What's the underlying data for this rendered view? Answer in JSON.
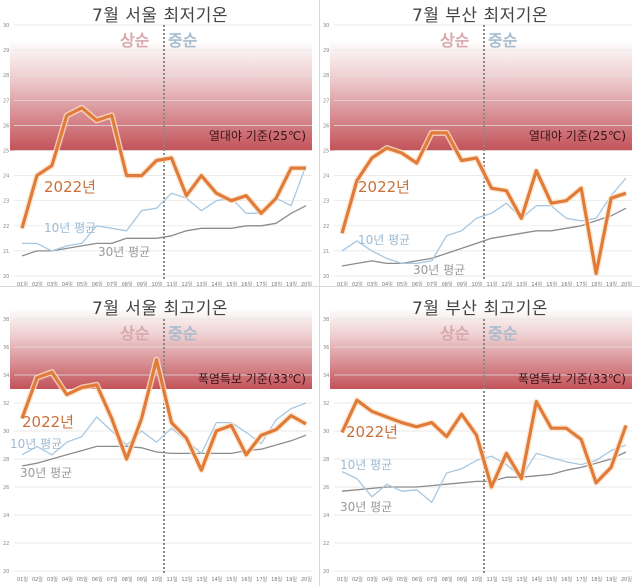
{
  "panels": [
    {
      "title": "7월 서울 최저기온",
      "period_early": "상순",
      "period_mid": "중순",
      "threshold_label": "열대야 기준(25℃)",
      "label_2022": "2022년",
      "label_10yr": "10년 평균",
      "label_30yr": "30년 평균"
    },
    {
      "title": "7월 부산 최저기온",
      "period_early": "상순",
      "period_mid": "중순",
      "threshold_label": "열대야 기준(25℃)",
      "label_2022": "2022년",
      "label_10yr": "10년 평균",
      "label_30yr": "30년 평균"
    },
    {
      "title": "7월 서울 최고기온",
      "period_early": "상순",
      "period_mid": "중순",
      "threshold_label": "폭염특보 기준(33℃)",
      "label_2022": "2022년",
      "label_10yr": "10년 평균",
      "label_30yr": "30년 평균"
    },
    {
      "title": "7월 부산 최고기온",
      "period_early": "상순",
      "period_mid": "중순",
      "threshold_label": "폭염특보 기준(33℃)",
      "label_2022": "2022년",
      "label_10yr": "10년 평균",
      "label_30yr": "30년 평균"
    }
  ],
  "colors": {
    "line_2022": "#e07b39",
    "line_10yr": "#a9c8e0",
    "line_30yr": "#8c8c8c",
    "band": "#b8343c",
    "divider": "#888888"
  },
  "chart_data": [
    {
      "type": "line",
      "title": "7월 서울 최저기온",
      "categories": [
        "01일",
        "02일",
        "03일",
        "04일",
        "05일",
        "06일",
        "07일",
        "08일",
        "09일",
        "10일",
        "11일",
        "12일",
        "13일",
        "14일",
        "15일",
        "16일",
        "17일",
        "18일",
        "19일",
        "20일"
      ],
      "ylim": [
        20,
        30
      ],
      "yticks": [
        20,
        21,
        22,
        23,
        24,
        25,
        26,
        27,
        28,
        29,
        30
      ],
      "threshold": 25,
      "threshold_label": "열대야 기준(25℃)",
      "divider_after": "10일",
      "series": [
        {
          "name": "2022년",
          "values": [
            21.9,
            24.0,
            24.4,
            26.4,
            26.7,
            26.2,
            26.4,
            24.0,
            24.0,
            24.6,
            24.7,
            23.2,
            24.0,
            23.3,
            23.0,
            23.2,
            22.5,
            23.1,
            24.3,
            24.3
          ]
        },
        {
          "name": "10년 평균",
          "values": [
            21.3,
            21.3,
            21.0,
            21.2,
            21.3,
            22.0,
            21.9,
            21.8,
            22.6,
            22.7,
            23.3,
            23.1,
            22.6,
            23.0,
            23.1,
            22.5,
            22.5,
            23.1,
            22.8,
            24.4
          ]
        },
        {
          "name": "30년 평균",
          "values": [
            20.8,
            21.0,
            21.0,
            21.1,
            21.2,
            21.3,
            21.3,
            21.5,
            21.5,
            21.5,
            21.6,
            21.8,
            21.9,
            21.9,
            21.9,
            22.0,
            22.0,
            22.1,
            22.5,
            22.8
          ]
        }
      ]
    },
    {
      "type": "line",
      "title": "7월 부산 최저기온",
      "categories": [
        "01일",
        "02일",
        "03일",
        "04일",
        "05일",
        "06일",
        "07일",
        "08일",
        "09일",
        "10일",
        "11일",
        "12일",
        "13일",
        "14일",
        "15일",
        "16일",
        "17일",
        "18일",
        "19일",
        "20일"
      ],
      "ylim": [
        20,
        30
      ],
      "yticks": [
        20,
        21,
        22,
        23,
        24,
        25,
        26,
        27,
        28,
        29,
        30
      ],
      "threshold": 25,
      "threshold_label": "열대야 기준(25℃)",
      "divider_after": "10일",
      "series": [
        {
          "name": "2022년",
          "values": [
            21.7,
            23.8,
            24.7,
            25.1,
            24.9,
            24.5,
            25.7,
            25.7,
            24.6,
            24.7,
            23.5,
            23.4,
            22.3,
            24.2,
            22.9,
            23.0,
            23.5,
            20.1,
            23.1,
            23.3
          ]
        },
        {
          "name": "10년 평균",
          "values": [
            21.0,
            21.4,
            21.0,
            20.7,
            20.5,
            20.5,
            20.6,
            21.6,
            21.8,
            22.3,
            22.5,
            22.9,
            22.3,
            22.8,
            22.8,
            22.3,
            22.2,
            22.3,
            23.2,
            23.9
          ]
        },
        {
          "name": "30년 평균",
          "values": [
            20.4,
            20.5,
            20.6,
            20.5,
            20.5,
            20.6,
            20.7,
            20.9,
            21.1,
            21.3,
            21.5,
            21.6,
            21.7,
            21.8,
            21.8,
            21.9,
            22.0,
            22.2,
            22.4,
            22.7
          ]
        }
      ]
    },
    {
      "type": "line",
      "title": "7월 서울 최고기온",
      "categories": [
        "01일",
        "02일",
        "03일",
        "04일",
        "05일",
        "06일",
        "07일",
        "08일",
        "09일",
        "10일",
        "11일",
        "12일",
        "13일",
        "14일",
        "15일",
        "16일",
        "17일",
        "18일",
        "19일",
        "20일"
      ],
      "ylim": [
        20,
        38
      ],
      "yticks": [
        20,
        22,
        24,
        26,
        28,
        30,
        32,
        34,
        36,
        38
      ],
      "threshold": 33,
      "threshold_label": "폭염특보 기준(33℃)",
      "divider_after": "10일",
      "series": [
        {
          "name": "2022년",
          "values": [
            30.9,
            33.8,
            34.2,
            32.6,
            33.1,
            33.3,
            30.9,
            28.0,
            30.9,
            35.1,
            30.6,
            29.5,
            27.2,
            30.0,
            30.4,
            28.3,
            29.7,
            30.1,
            31.1,
            30.5
          ]
        },
        {
          "name": "10년 평균",
          "values": [
            28.3,
            28.9,
            28.3,
            29.2,
            29.6,
            31.0,
            30.0,
            29.0,
            30.0,
            29.2,
            30.2,
            29.3,
            28.4,
            30.6,
            30.6,
            29.9,
            29.1,
            30.8,
            31.6,
            32.0
          ]
        },
        {
          "name": "30년 평균",
          "values": [
            27.5,
            27.7,
            28.0,
            28.3,
            28.6,
            28.9,
            28.9,
            28.9,
            28.8,
            28.5,
            28.4,
            28.4,
            28.4,
            28.4,
            28.4,
            28.6,
            28.7,
            29.0,
            29.3,
            29.7
          ]
        }
      ]
    },
    {
      "type": "line",
      "title": "7월 부산 최고기온",
      "categories": [
        "01일",
        "02일",
        "03일",
        "04일",
        "05일",
        "06일",
        "07일",
        "08일",
        "09일",
        "10일",
        "11일",
        "12일",
        "13일",
        "14일",
        "15일",
        "16일",
        "17일",
        "18일",
        "19일",
        "20일"
      ],
      "ylim": [
        20,
        38
      ],
      "yticks": [
        20,
        22,
        24,
        26,
        28,
        30,
        32,
        34,
        36,
        38
      ],
      "threshold": 33,
      "threshold_label": "폭염특보 기준(33℃)",
      "divider_after": "10일",
      "series": [
        {
          "name": "2022년",
          "values": [
            29.9,
            32.2,
            31.4,
            31.0,
            30.6,
            30.3,
            30.6,
            29.6,
            31.2,
            29.7,
            26.0,
            28.4,
            26.6,
            32.1,
            30.2,
            30.2,
            29.4,
            26.3,
            27.4,
            30.4
          ]
        },
        {
          "name": "10년 평균",
          "values": [
            27.1,
            26.6,
            25.3,
            26.2,
            25.7,
            25.8,
            24.9,
            27.0,
            27.3,
            27.9,
            28.2,
            27.6,
            26.7,
            28.4,
            28.1,
            27.8,
            27.6,
            27.9,
            28.6,
            29.0
          ]
        },
        {
          "name": "30년 평균",
          "values": [
            25.7,
            25.8,
            25.9,
            26.0,
            26.0,
            26.0,
            26.1,
            26.2,
            26.3,
            26.4,
            26.4,
            26.7,
            26.7,
            26.8,
            26.9,
            27.2,
            27.4,
            27.7,
            28.0,
            28.5
          ]
        }
      ]
    }
  ]
}
